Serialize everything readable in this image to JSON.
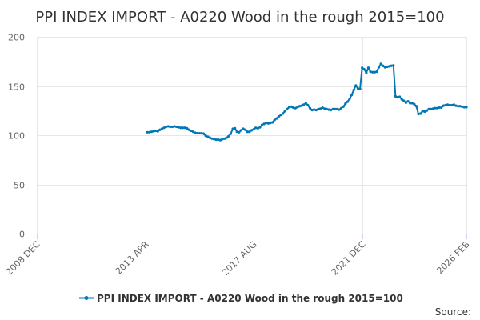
{
  "chart_data": {
    "type": "line",
    "title": "PPI INDEX IMPORT - A0220 Wood in the rough 2015=100",
    "xlabel": "",
    "ylabel": "",
    "xlim": [
      "2008-12",
      "2026-02"
    ],
    "ylim": [
      0,
      200
    ],
    "grid": true,
    "legend_position": "bottom",
    "y_ticks": [
      "0",
      "50",
      "100",
      "150",
      "200"
    ],
    "x_tick_positions": [
      "2008-12",
      "2013-04",
      "2017-08",
      "2021-12",
      "2026-02"
    ],
    "x_ticks": [
      "2008 DEC",
      "2013 APR",
      "2017 AUG",
      "2021 DEC",
      "2026 FEB"
    ],
    "series": [
      {
        "name": "PPI INDEX IMPORT - A0220 Wood in the rough 2015=100",
        "color": "#0077b6",
        "points": [
          [
            "2013-05",
            103
          ],
          [
            "2013-06",
            103
          ],
          [
            "2013-07",
            103.5
          ],
          [
            "2013-08",
            104
          ],
          [
            "2013-09",
            104.5
          ],
          [
            "2013-10",
            104
          ],
          [
            "2013-11",
            105.5
          ],
          [
            "2013-12",
            106.5
          ],
          [
            "2014-01",
            107.5
          ],
          [
            "2014-02",
            108.5
          ],
          [
            "2014-03",
            109
          ],
          [
            "2014-04",
            108.5
          ],
          [
            "2014-05",
            108.5
          ],
          [
            "2014-06",
            109
          ],
          [
            "2014-07",
            108.5
          ],
          [
            "2014-08",
            108
          ],
          [
            "2014-09",
            107.5
          ],
          [
            "2014-10",
            107.5
          ],
          [
            "2014-11",
            107.5
          ],
          [
            "2014-12",
            107
          ],
          [
            "2015-01",
            105.5
          ],
          [
            "2015-02",
            104.5
          ],
          [
            "2015-03",
            103.5
          ],
          [
            "2015-04",
            102.5
          ],
          [
            "2015-05",
            102
          ],
          [
            "2015-06",
            102
          ],
          [
            "2015-07",
            102
          ],
          [
            "2015-08",
            101.5
          ],
          [
            "2015-09",
            99.5
          ],
          [
            "2015-10",
            98.5
          ],
          [
            "2015-11",
            97.5
          ],
          [
            "2015-12",
            96.5
          ],
          [
            "2016-01",
            96
          ],
          [
            "2016-02",
            95.5
          ],
          [
            "2016-03",
            95.5
          ],
          [
            "2016-04",
            95
          ],
          [
            "2016-05",
            96
          ],
          [
            "2016-06",
            96.5
          ],
          [
            "2016-07",
            97.5
          ],
          [
            "2016-08",
            99
          ],
          [
            "2016-09",
            101.5
          ],
          [
            "2016-10",
            106.5
          ],
          [
            "2016-11",
            107
          ],
          [
            "2016-12",
            103.5
          ],
          [
            "2017-01",
            103
          ],
          [
            "2017-02",
            105
          ],
          [
            "2017-03",
            106.5
          ],
          [
            "2017-04",
            105.5
          ],
          [
            "2017-05",
            103.5
          ],
          [
            "2017-06",
            103.5
          ],
          [
            "2017-07",
            105
          ],
          [
            "2017-08",
            106
          ],
          [
            "2017-09",
            107.5
          ],
          [
            "2017-10",
            107
          ],
          [
            "2017-11",
            108
          ],
          [
            "2017-12",
            110.5
          ],
          [
            "2018-01",
            111.5
          ],
          [
            "2018-02",
            112.5
          ],
          [
            "2018-03",
            112
          ],
          [
            "2018-04",
            112.5
          ],
          [
            "2018-05",
            113
          ],
          [
            "2018-06",
            115.5
          ],
          [
            "2018-07",
            117
          ],
          [
            "2018-08",
            119
          ],
          [
            "2018-09",
            120.5
          ],
          [
            "2018-10",
            122
          ],
          [
            "2018-11",
            124.5
          ],
          [
            "2018-12",
            126.5
          ],
          [
            "2019-01",
            128.5
          ],
          [
            "2019-02",
            129
          ],
          [
            "2019-03",
            128
          ],
          [
            "2019-04",
            127.5
          ],
          [
            "2019-05",
            128.5
          ],
          [
            "2019-06",
            129.5
          ],
          [
            "2019-07",
            130
          ],
          [
            "2019-08",
            131
          ],
          [
            "2019-09",
            132.5
          ],
          [
            "2019-10",
            130.5
          ],
          [
            "2019-11",
            127.5
          ],
          [
            "2019-12",
            125.5
          ],
          [
            "2020-01",
            126
          ],
          [
            "2020-02",
            125.5
          ],
          [
            "2020-03",
            126.5
          ],
          [
            "2020-04",
            127
          ],
          [
            "2020-05",
            128
          ],
          [
            "2020-06",
            127
          ],
          [
            "2020-07",
            126.5
          ],
          [
            "2020-08",
            126
          ],
          [
            "2020-09",
            125.5
          ],
          [
            "2020-10",
            126.5
          ],
          [
            "2020-11",
            126.5
          ],
          [
            "2020-12",
            126.5
          ],
          [
            "2021-01",
            126
          ],
          [
            "2021-02",
            127.5
          ],
          [
            "2021-03",
            129
          ],
          [
            "2021-04",
            132
          ],
          [
            "2021-05",
            134
          ],
          [
            "2021-06",
            137
          ],
          [
            "2021-07",
            141
          ],
          [
            "2021-08",
            146
          ],
          [
            "2021-09",
            150.5
          ],
          [
            "2021-10",
            147.5
          ],
          [
            "2021-11",
            147
          ],
          [
            "2021-12",
            168.5
          ],
          [
            "2022-01",
            167
          ],
          [
            "2022-02",
            163.5
          ],
          [
            "2022-03",
            168.5
          ],
          [
            "2022-04",
            164.5
          ],
          [
            "2022-05",
            164
          ],
          [
            "2022-06",
            164
          ],
          [
            "2022-07",
            164.5
          ],
          [
            "2022-08",
            169
          ],
          [
            "2022-09",
            172.5
          ],
          [
            "2022-10",
            170.5
          ],
          [
            "2022-11",
            169
          ],
          [
            "2022-12",
            169.5
          ],
          [
            "2023-01",
            170
          ],
          [
            "2023-02",
            170.5
          ],
          [
            "2023-03",
            171
          ],
          [
            "2023-04",
            139.5
          ],
          [
            "2023-05",
            138.5
          ],
          [
            "2023-06",
            139
          ],
          [
            "2023-07",
            136.5
          ],
          [
            "2023-08",
            135
          ],
          [
            "2023-09",
            133
          ],
          [
            "2023-10",
            134.5
          ],
          [
            "2023-11",
            132.5
          ],
          [
            "2023-12",
            132.5
          ],
          [
            "2024-01",
            131.5
          ],
          [
            "2024-02",
            129.5
          ],
          [
            "2024-03",
            121.5
          ],
          [
            "2024-04",
            122
          ],
          [
            "2024-05",
            124.5
          ],
          [
            "2024-06",
            124
          ],
          [
            "2024-07",
            125
          ],
          [
            "2024-08",
            126.5
          ],
          [
            "2024-09",
            126.5
          ],
          [
            "2024-10",
            127
          ],
          [
            "2024-11",
            127.5
          ],
          [
            "2024-12",
            127.5
          ],
          [
            "2025-01",
            128
          ],
          [
            "2025-02",
            128
          ],
          [
            "2025-03",
            130
          ],
          [
            "2025-04",
            130.5
          ],
          [
            "2025-05",
            131
          ],
          [
            "2025-06",
            130.5
          ],
          [
            "2025-07",
            130.5
          ],
          [
            "2025-08",
            131
          ],
          [
            "2025-09",
            130
          ],
          [
            "2025-10",
            129.5
          ],
          [
            "2025-11",
            129.5
          ],
          [
            "2025-12",
            129
          ],
          [
            "2026-01",
            128.5
          ],
          [
            "2026-02",
            128.5
          ]
        ]
      }
    ]
  },
  "footer": {
    "legend_label": "PPI INDEX IMPORT - A0220 Wood in the rough 2015=100",
    "source_label": "Source:"
  },
  "colors": {
    "series": "#0077b6",
    "grid": "#e6e6e6",
    "axis": "#ccd6eb"
  }
}
